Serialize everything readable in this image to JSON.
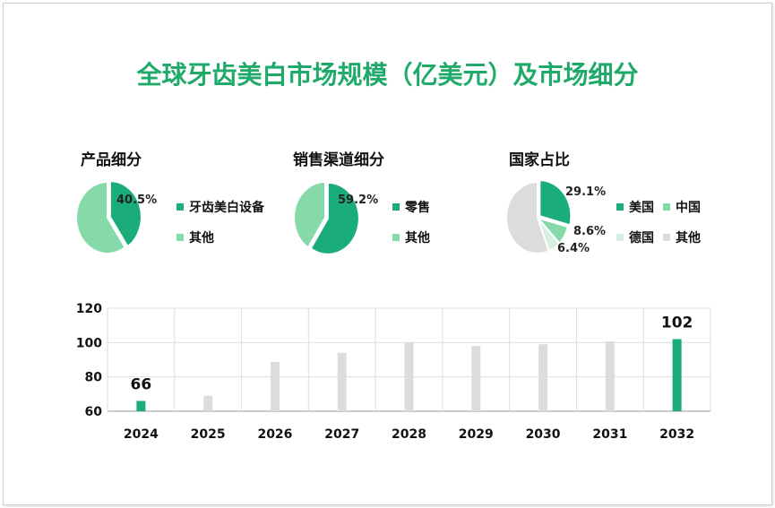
{
  "title": "全球牙齿美白市场规模（亿美元）及市场细分",
  "colors": {
    "title": "#1faa6a",
    "primary": "#1aad7a",
    "secondary": "#86d9a8",
    "tertiary": "#d6efdf",
    "grey": "#dcdcdc"
  },
  "chart_data": [
    {
      "type": "pie",
      "title": "产品细分",
      "slices": [
        {
          "name": "牙齿美白设备",
          "value": 40.5,
          "label": "40.5%",
          "color": "#1aad7a"
        },
        {
          "name": "其他",
          "value": 59.5,
          "color": "#86d9a8"
        }
      ]
    },
    {
      "type": "pie",
      "title": "销售渠道细分",
      "slices": [
        {
          "name": "零售",
          "value": 59.2,
          "label": "59.2%",
          "color": "#1aad7a"
        },
        {
          "name": "其他",
          "value": 40.8,
          "color": "#86d9a8"
        }
      ]
    },
    {
      "type": "pie",
      "title": "国家占比",
      "slices": [
        {
          "name": "美国",
          "value": 29.1,
          "label": "29.1%",
          "color": "#1aad7a"
        },
        {
          "name": "中国",
          "value": 8.6,
          "label": "8.6%",
          "color": "#86d9a8"
        },
        {
          "name": "德国",
          "value": 6.4,
          "label": "6.4%",
          "color": "#d6efdf"
        },
        {
          "name": "其他",
          "value": 55.9,
          "color": "#dcdcdc"
        }
      ]
    },
    {
      "type": "bar",
      "categories": [
        "2024",
        "2025",
        "2026",
        "2027",
        "2028",
        "2029",
        "2030",
        "2031",
        "2032"
      ],
      "values": [
        66,
        69,
        88.7,
        94,
        100,
        98,
        99,
        100.7,
        102
      ],
      "data_labels": {
        "0": "66",
        "8": "102"
      },
      "highlight": [
        0,
        8
      ],
      "ylim": [
        60,
        120
      ],
      "yticks": [
        "60",
        "80",
        "100",
        "120"
      ],
      "grid": true
    }
  ]
}
